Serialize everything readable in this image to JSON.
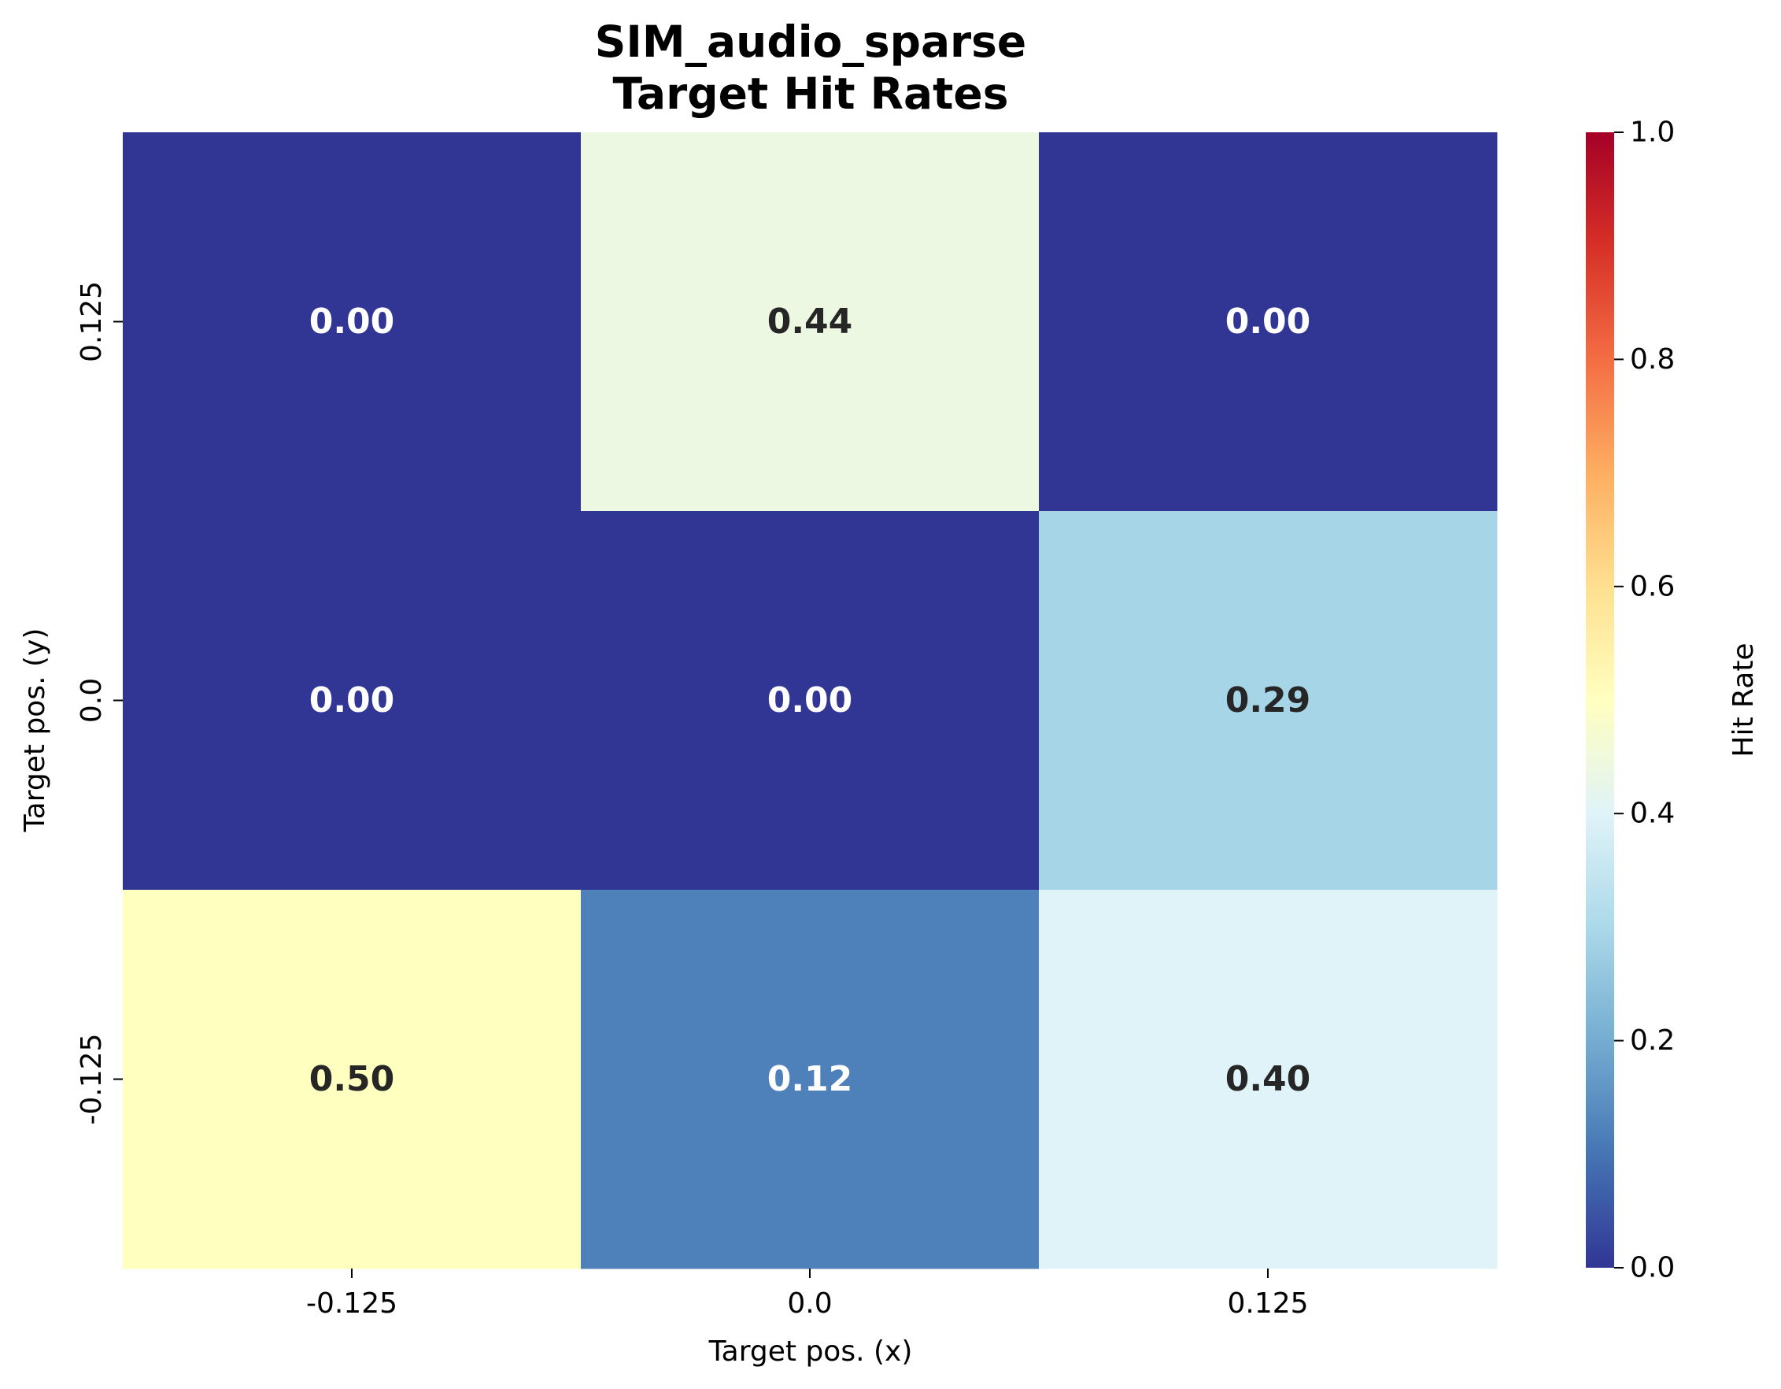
{
  "chart_data": {
    "type": "heatmap",
    "title": [
      "SIM_audio_sparse",
      "Target Hit Rates"
    ],
    "xlabel": "Target pos. (x)",
    "ylabel": "Target pos. (y)",
    "x_categories": [
      "-0.125",
      "0.0",
      "0.125"
    ],
    "y_categories": [
      "0.125",
      "0.0",
      "-0.125"
    ],
    "values": [
      [
        0.0,
        0.44,
        0.0
      ],
      [
        0.0,
        0.0,
        0.29
      ],
      [
        0.5,
        0.12,
        0.4
      ]
    ],
    "value_labels": [
      [
        "0.00",
        "0.44",
        "0.00"
      ],
      [
        "0.00",
        "0.00",
        "0.29"
      ],
      [
        "0.50",
        "0.12",
        "0.40"
      ]
    ],
    "colormap": "RdYlBu_r",
    "vmin": 0,
    "vmax": 1,
    "colorbar": {
      "label": "Hit Rate",
      "ticks": [
        "0.0",
        "0.2",
        "0.4",
        "0.6",
        "0.8",
        "1.0"
      ]
    },
    "grid": false
  }
}
